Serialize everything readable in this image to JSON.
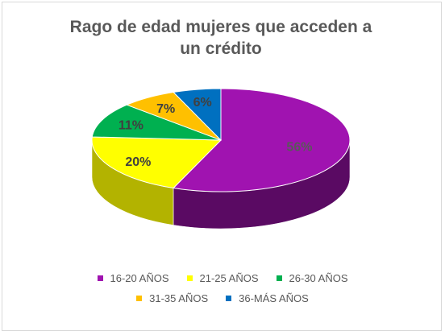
{
  "chart_data": {
    "type": "pie",
    "title_line1": "Rago de edad mujeres que acceden a",
    "title_line2": "un crédito",
    "categories": [
      "16-20 AÑOS",
      "21-25 AÑOS",
      "26-30 AÑOS",
      "31-35 AÑOS",
      "36-MÁS AÑOS"
    ],
    "values": [
      56,
      20,
      11,
      7,
      6
    ],
    "labels": [
      "56%",
      "20%",
      "11%",
      "7%",
      "6%"
    ],
    "colors": [
      "#a013b0",
      "#ffff00",
      "#00b050",
      "#ffc000",
      "#0070c0"
    ],
    "side_colors": [
      "#5a0a63",
      "#b3b300",
      "#007a3d",
      "#b38600",
      "#004f88"
    ],
    "label_colors": [
      "#595959",
      "#404040",
      "#404040",
      "#404040",
      "#404040"
    ],
    "style": "3d-tilted",
    "legend_position": "bottom"
  }
}
